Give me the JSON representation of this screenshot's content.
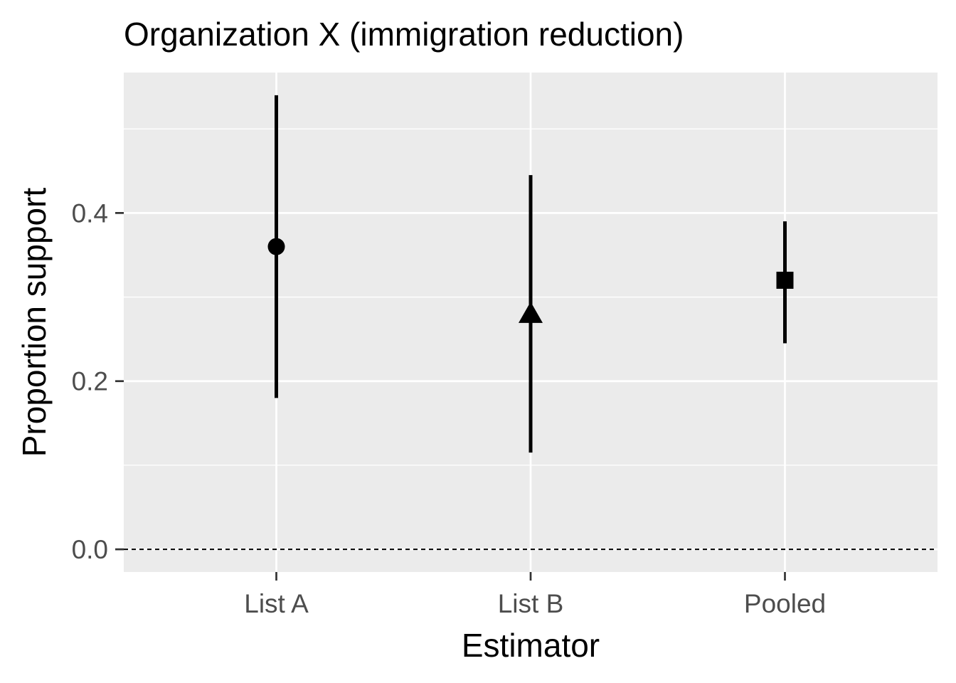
{
  "chart_data": {
    "type": "scatter",
    "title": "Organization X (immigration reduction)",
    "xlabel": "Estimator",
    "ylabel": "Proportion support",
    "categories": [
      "List A",
      "List B",
      "Pooled"
    ],
    "points": [
      {
        "category": "List A",
        "estimate": 0.36,
        "lower": 0.18,
        "upper": 0.54,
        "shape": "circle"
      },
      {
        "category": "List B",
        "estimate": 0.28,
        "lower": 0.115,
        "upper": 0.445,
        "shape": "triangle"
      },
      {
        "category": "Pooled",
        "estimate": 0.32,
        "lower": 0.245,
        "upper": 0.39,
        "shape": "square"
      }
    ],
    "yticks": [
      0.0,
      0.2,
      0.4
    ],
    "ytick_labels": [
      "0.0",
      "0.2",
      "0.4"
    ],
    "ylim": [
      -0.027,
      0.567
    ],
    "reference_line": {
      "y": 0,
      "style": "dashed"
    },
    "grid": true,
    "colors": {
      "panel": "#ebebeb",
      "grid": "#ffffff",
      "marks": "#000000",
      "tick_text": "#4d4d4d"
    }
  }
}
